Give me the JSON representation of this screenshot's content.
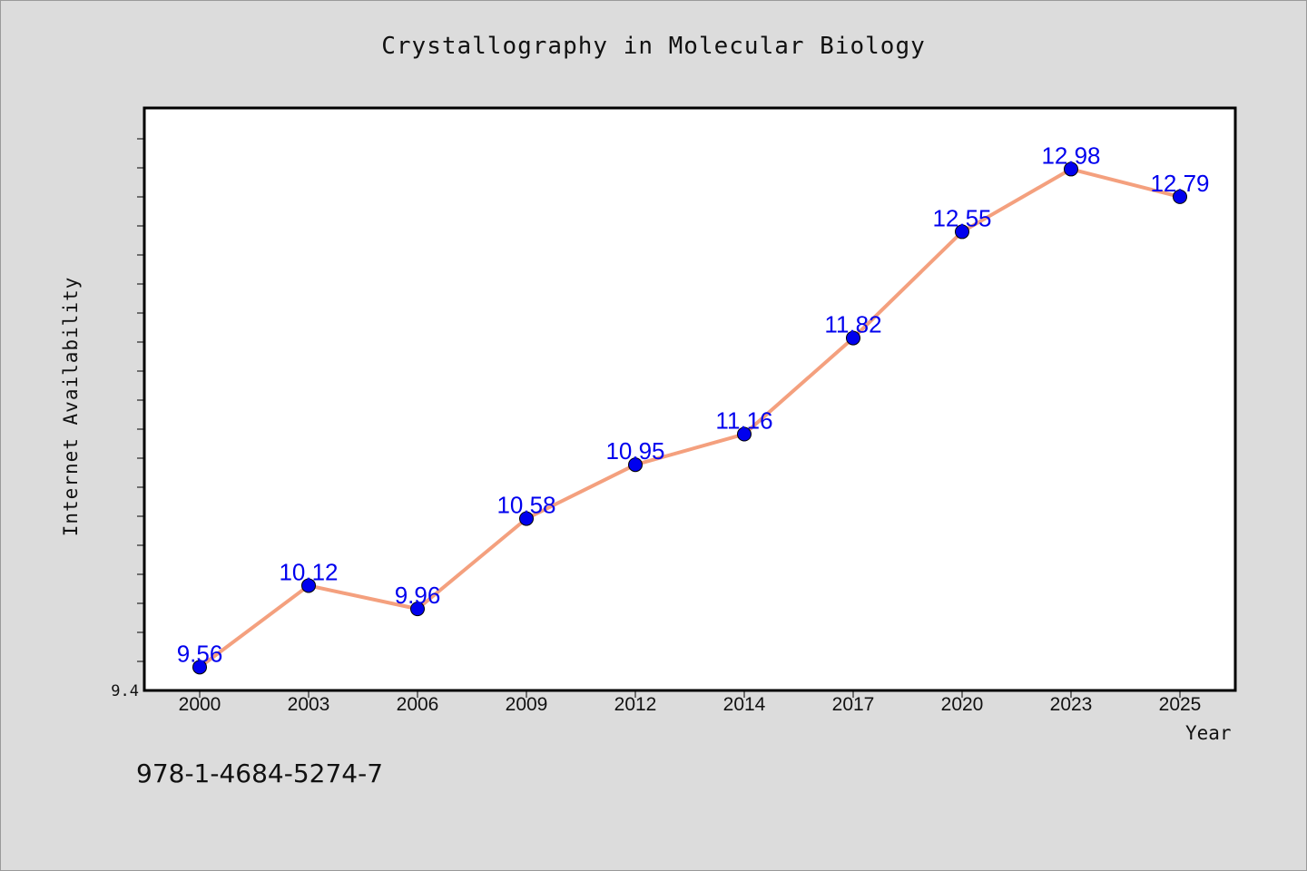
{
  "chart_data": {
    "type": "line",
    "title": "Crystallography in Molecular Biology",
    "xlabel": "Year",
    "ylabel": "Internet Availability",
    "categories": [
      "2000",
      "2003",
      "2006",
      "2009",
      "2012",
      "2014",
      "2017",
      "2020",
      "2023",
      "2025"
    ],
    "series": [
      {
        "values": [
          9.56,
          10.12,
          9.96,
          10.58,
          10.95,
          11.16,
          11.82,
          12.55,
          12.98,
          12.79
        ],
        "labels": [
          "9.56",
          "10.12",
          "9.96",
          "10.58",
          "10.95",
          "11.16",
          "11.82",
          "12.55",
          "12.98",
          "12.79"
        ]
      }
    ],
    "y_tick_labels": [
      "9.4"
    ],
    "ylim": [
      9.4,
      13.4
    ],
    "grid": false,
    "line_color": "#f4a07e",
    "marker_color": "#0000ee",
    "label_color": "#0000ee"
  },
  "footer": {
    "isbn": "978-1-4684-5274-7"
  },
  "colors": {
    "background": "#dcdcdc",
    "plot_background": "#ffffff"
  }
}
